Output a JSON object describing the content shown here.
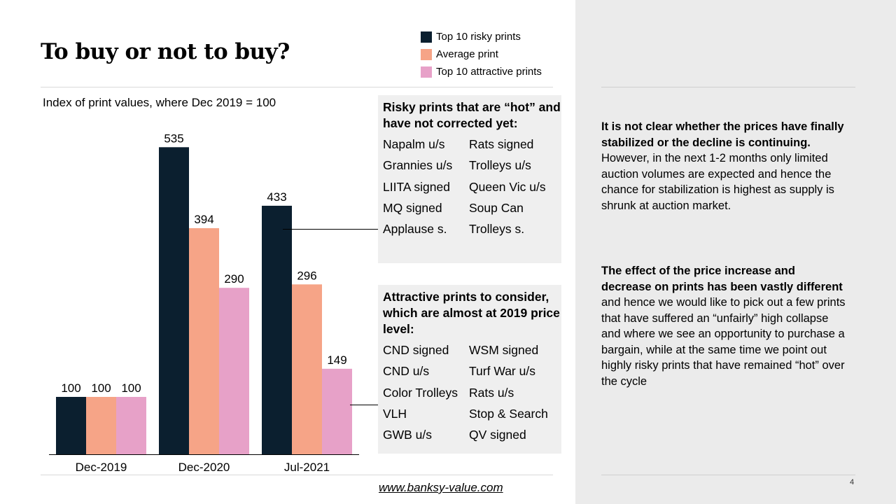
{
  "slide": {
    "title": "To buy or not to buy?",
    "page_number": "4",
    "website": "www.banksy-value.com"
  },
  "colors": {
    "risky": "#0b1f2f",
    "average": "#f6a487",
    "attractive": "#e7a1c8",
    "panel_bg": "#ebebeb",
    "box_bg": "#efefef"
  },
  "legend": [
    {
      "label": "Top 10 risky prints",
      "color": "#0b1f2f"
    },
    {
      "label": "Average print",
      "color": "#f6a487"
    },
    {
      "label": "Top 10 attractive prints",
      "color": "#e7a1c8"
    }
  ],
  "chart_data": {
    "type": "bar",
    "title": "Index of print values, where Dec 2019 = 100",
    "categories": [
      "Dec-2019",
      "Dec-2020",
      "Jul-2021"
    ],
    "series": [
      {
        "name": "Top 10 risky prints",
        "color": "#0b1f2f",
        "values": [
          100,
          535,
          433
        ]
      },
      {
        "name": "Average print",
        "color": "#f6a487",
        "values": [
          100,
          394,
          296
        ]
      },
      {
        "name": "Top 10 attractive prints",
        "color": "#e7a1c8",
        "values": [
          100,
          290,
          149
        ]
      }
    ],
    "ylim": [
      0,
      600
    ],
    "grid": false,
    "legend": "top-right",
    "xlabel": "",
    "ylabel": ""
  },
  "risky_box": {
    "heading": "Risky prints that are “hot” and have not corrected yet:",
    "items": [
      "Napalm u/s",
      "Rats signed",
      "Grannies u/s",
      "Trolleys u/s",
      "LIITA signed",
      "Queen Vic u/s",
      "MQ signed",
      "Soup Can",
      "Applause s.",
      "Trolleys s."
    ]
  },
  "attractive_box": {
    "heading": "Attractive prints to consider, which are almost at 2019 price level:",
    "items": [
      "CND signed",
      "WSM signed",
      "CND u/s",
      "Turf War u/s",
      "Color Trolleys",
      "Rats u/s",
      "VLH",
      "Stop & Search",
      "GWB u/s",
      "QV signed"
    ]
  },
  "commentary": {
    "p1_bold": "It is not clear whether the prices have finally stabilized or the decline is continuing.",
    "p1_rest": " However, in the next 1-2 months only limited auction volumes are expected and hence the chance for stabilization is highest as supply is shrunk at auction market.",
    "p2_bold": "The effect of the price increase and decrease on prints has been vastly different",
    "p2_rest": " and hence we would like to pick out a few prints that have suffered an “unfairly” high collapse and where we see an opportunity to purchase a bargain, while at the same time we point out highly risky prints that have remained “hot” over the cycle"
  }
}
